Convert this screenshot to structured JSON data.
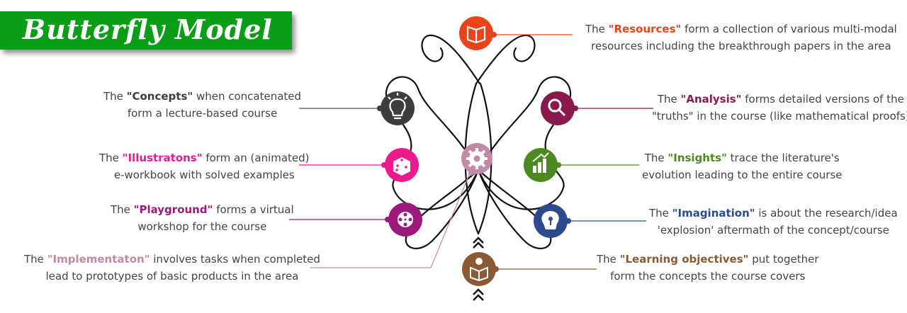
{
  "title": "Butterfly Model",
  "colors": {
    "banner": "#0a9d18",
    "resources": "#e8441b",
    "analysis": "#8a1a4e",
    "insights": "#4c8a1f",
    "imagination": "#2d4a8c",
    "learning": "#8a5a34",
    "concepts": "#3d3d3d",
    "illustrations": "#ec1a8c",
    "playground": "#9b1a7a",
    "implementation": "#c089a8"
  },
  "nodes": [
    {
      "id": "resources",
      "icon": "book-icon",
      "pre": "The ",
      "term": "\"Resources\"",
      "line1": " form a collection of various multi-modal",
      "line2": "resources including the breakthrough papers in the area"
    },
    {
      "id": "concepts",
      "icon": "lightbulb-icon",
      "pre": "The ",
      "term": "\"Concepts\"",
      "line1": " when concatenated",
      "line2": "form a lecture-based course"
    },
    {
      "id": "analysis",
      "icon": "magnifier-icon",
      "pre": "The ",
      "term": "\"Analysis\"",
      "line1": " forms detailed versions of the",
      "line2": "\"truths\" in the course (like mathematical proofs)"
    },
    {
      "id": "illustrations",
      "icon": "dice-icon",
      "pre": "The ",
      "term": "\"Illustratons\"",
      "line1": " form an (animated)",
      "line2": "e-workbook with solved examples"
    },
    {
      "id": "insights",
      "icon": "growth-chart-icon",
      "pre": "The ",
      "term": "\"Insights\"",
      "line1": " trace the literature's",
      "line2": "evolution leading to the entire course"
    },
    {
      "id": "playground",
      "icon": "film-reel-icon",
      "pre": "The ",
      "term": "\"Playground\"",
      "line1": " forms a virtual",
      "line2": "workshop for the course"
    },
    {
      "id": "imagination",
      "icon": "brain-bulb-icon",
      "pre": "The ",
      "term": "\"Imagination\"",
      "line1": " is about the research/idea",
      "line2": "'explosion' aftermath of the concept/course"
    },
    {
      "id": "implementation",
      "icon": "gear-icon",
      "pre": "The ",
      "term": "\"Implementaton\"",
      "line1": " involves tasks when completed",
      "line2": "lead to prototypes of basic products in the area"
    },
    {
      "id": "learning",
      "icon": "reading-person-icon",
      "pre": "The ",
      "term": "\"Learning objectives\"",
      "line1": " put together",
      "line2": "form the concepts the course covers"
    }
  ]
}
